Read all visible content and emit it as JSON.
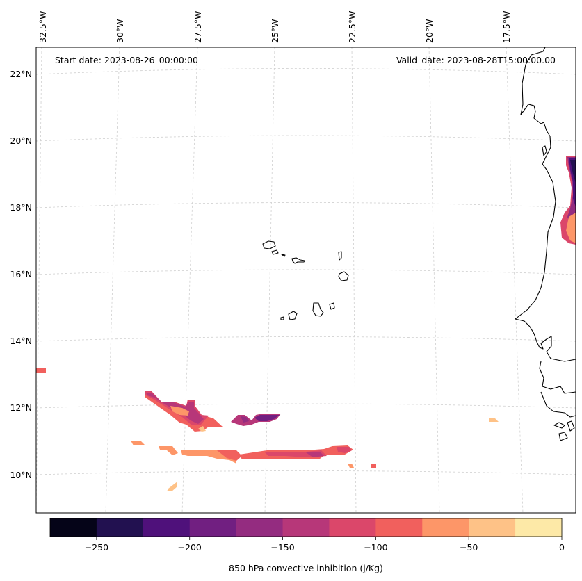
{
  "header": {
    "start_date": "Start date: 2023-08-26_00:00:00",
    "valid_date": "Valid_date: 2023-08-28T15:00:00.00"
  },
  "axes": {
    "lon_labels": [
      "32.5°W",
      "30°W",
      "27.5°W",
      "25°W",
      "22.5°W",
      "20°W",
      "17.5°W"
    ],
    "lat_labels": [
      "22°N",
      "20°N",
      "18°N",
      "16°N",
      "14°N",
      "12°N",
      "10°N"
    ]
  },
  "colorbar": {
    "label": "850 hPa convective inhibition (j/Kg)",
    "levels": [
      -275,
      -250,
      -225,
      -200,
      -175,
      -150,
      -125,
      -100,
      -75,
      -50,
      -25,
      0
    ],
    "tick_labels": [
      "−250",
      "−200",
      "−150",
      "−100",
      "−50",
      "0"
    ],
    "colors": [
      "#050418",
      "#221150",
      "#4f117b",
      "#711f81",
      "#942c80",
      "#b73779",
      "#db476a",
      "#f1605d",
      "#fd9668",
      "#fec287",
      "#fde9a7"
    ]
  },
  "chart_data": {
    "type": "map-contourf",
    "projection": "lambert-conformal",
    "variable": "850 hPa convective inhibition",
    "units": "j/Kg",
    "lon_range_deg": [
      -33,
      -16
    ],
    "lat_range_deg": [
      9,
      22.5
    ],
    "features": [
      "Cape Verde islands",
      "West African coastline (Mauritania, Senegal, Gambia, Guinea-Bissau)"
    ],
    "regions": [
      {
        "name": "band near 11.5N 28W-26W",
        "min_value": -175
      },
      {
        "name": "patch near 11.5N 24.5W",
        "min_value": -200
      },
      {
        "name": "band near 10.5N 28W-21W",
        "min_value": -150
      },
      {
        "name": "east coast patch near 18N 16W",
        "min_value": -250
      },
      {
        "name": "west edge patch near 13N 33W",
        "min_value": -100
      },
      {
        "name": "isolated patch near 11.5N 18W",
        "min_value": -50
      }
    ]
  }
}
